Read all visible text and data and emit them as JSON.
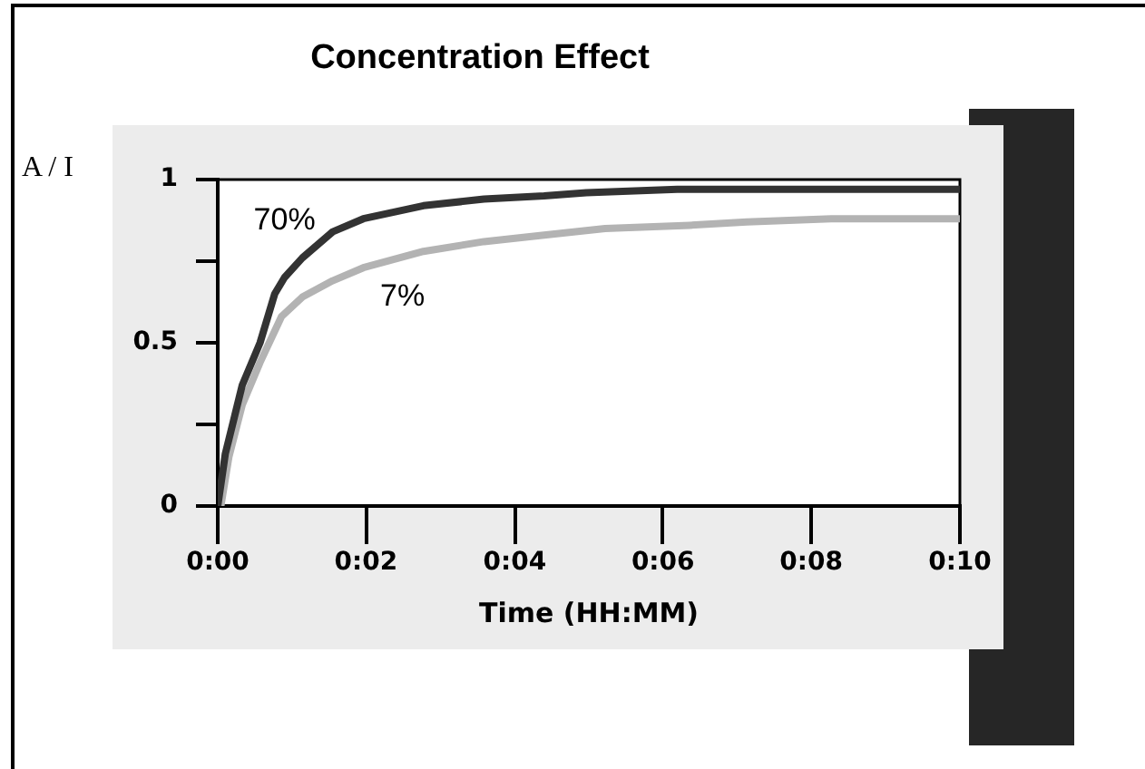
{
  "chart_data": {
    "type": "line",
    "title": "Concentration Effect",
    "xlabel": "Time (HH:MM)",
    "ylabel": "A / I",
    "series": [
      {
        "name": "70%",
        "color": "#333333",
        "x": [
          0,
          0.0017,
          0.0055,
          0.0095,
          0.0128,
          0.015,
          0.019,
          0.0258,
          0.0327,
          0.0462,
          0.0598,
          0.0733,
          0.0828,
          0.1032,
          0.1667
        ],
        "values": [
          0,
          0.16,
          0.37,
          0.5,
          0.65,
          0.7,
          0.76,
          0.84,
          0.88,
          0.92,
          0.94,
          0.95,
          0.96,
          0.97,
          0.97
        ]
      },
      {
        "name": "7%",
        "color": "#b3b3b3",
        "x": [
          0.0007,
          0.0025,
          0.0055,
          0.0095,
          0.0143,
          0.019,
          0.0258,
          0.0327,
          0.0462,
          0.0598,
          0.0733,
          0.087,
          0.106,
          0.1188,
          0.1378,
          0.1667
        ],
        "values": [
          0,
          0.15,
          0.31,
          0.44,
          0.58,
          0.64,
          0.69,
          0.73,
          0.78,
          0.81,
          0.83,
          0.85,
          0.86,
          0.87,
          0.88,
          0.88
        ]
      }
    ],
    "xlim": [
      0,
      0.1667
    ],
    "xticks": [
      {
        "value": 0,
        "label": "0:00"
      },
      {
        "value": 0.0333,
        "label": "0:02"
      },
      {
        "value": 0.0667,
        "label": "0:04"
      },
      {
        "value": 0.1,
        "label": "0:06"
      },
      {
        "value": 0.1333,
        "label": "0:08"
      },
      {
        "value": 0.1667,
        "label": "0:10"
      }
    ],
    "ylim": [
      0,
      1
    ],
    "yticks": [
      0,
      {
        "value": 0.25,
        "label": null
      },
      0.5,
      {
        "value": 0.75,
        "label": null
      },
      1
    ],
    "grid": false,
    "legend": false,
    "marker": "none"
  }
}
